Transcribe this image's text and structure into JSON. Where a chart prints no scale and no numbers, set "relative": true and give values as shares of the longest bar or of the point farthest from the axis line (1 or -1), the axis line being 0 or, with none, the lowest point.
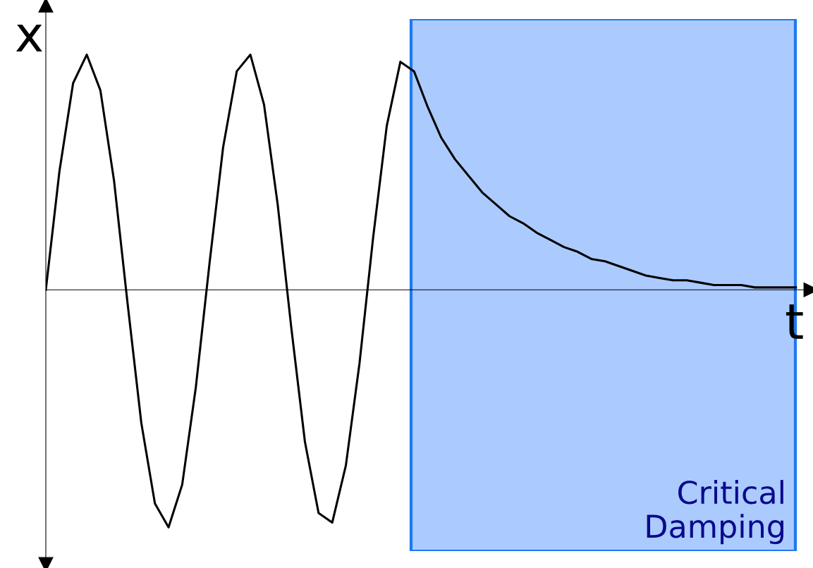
{
  "chart_data": {
    "type": "line",
    "relative": true,
    "xlabel": "t",
    "ylabel": "x",
    "marker": "none",
    "line_style": "solid",
    "categories": [
      null,
      null,
      null,
      null,
      null,
      null,
      null,
      null,
      null,
      null,
      null,
      null,
      null,
      null,
      null,
      null,
      null,
      null,
      null,
      null,
      null,
      null,
      null,
      null,
      null,
      null,
      null,
      null,
      null,
      null,
      null,
      null,
      null,
      null,
      null,
      null,
      null,
      null,
      null,
      null,
      null,
      null,
      null,
      null,
      null,
      null,
      null,
      null,
      null,
      null,
      null,
      null,
      null,
      null,
      null,
      null
    ],
    "series": [
      {
        "color": "#000000",
        "values": [
          0,
          0.5,
          0.87,
          0.99,
          0.84,
          0.46,
          -0.06,
          -0.56,
          -0.9,
          -1.0,
          -0.82,
          -0.41,
          0.11,
          0.6,
          0.92,
          0.99,
          0.78,
          0.36,
          -0.16,
          -0.64,
          -0.94,
          -0.98,
          -0.74,
          -0.31,
          0.22,
          0.69,
          0.96,
          0.92,
          0.77,
          0.64,
          0.55,
          0.48,
          0.41,
          0.36,
          0.31,
          0.28,
          0.24,
          0.21,
          0.18,
          0.16,
          0.13,
          0.12,
          0.1,
          0.08,
          0.06,
          0.05,
          0.04,
          0.04,
          0.03,
          0.02,
          0.02,
          0.02,
          0.01,
          0.01,
          0.01,
          0.01
        ]
      }
    ],
    "annotations": [
      "Critical\nDamping"
    ]
  }
}
